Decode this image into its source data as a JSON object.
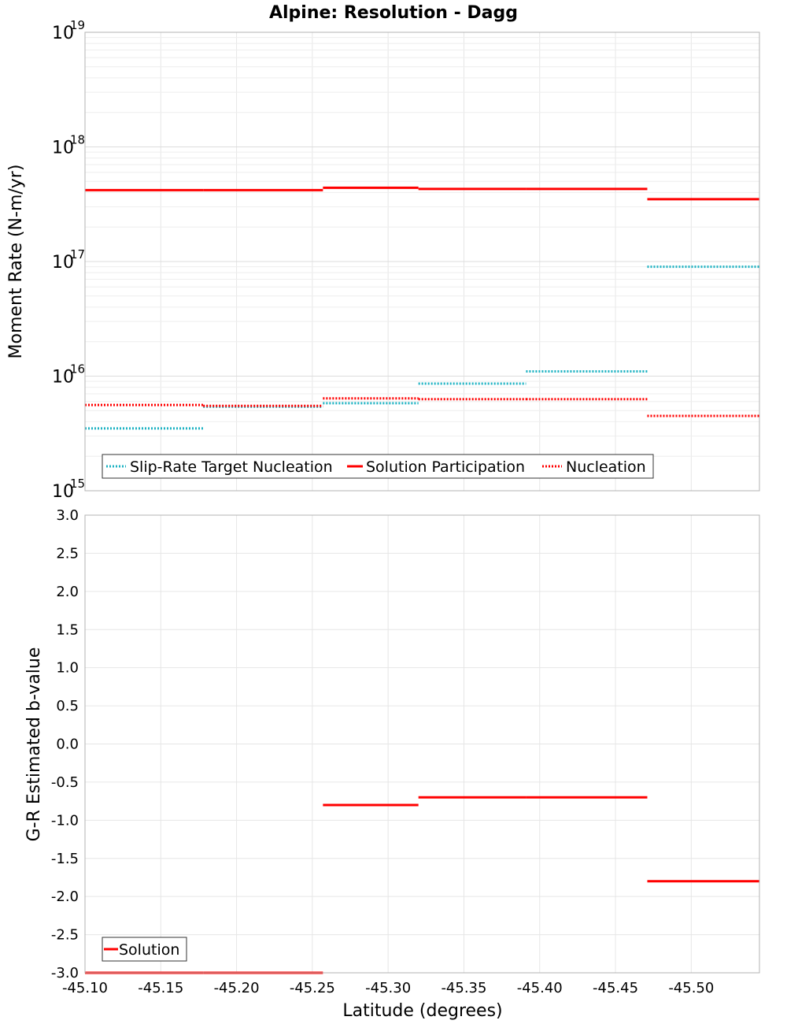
{
  "title": "Alpine: Resolution - Dagg",
  "colors": {
    "teal": "#1fb3c3",
    "red": "#ff0000",
    "grid": "#e6e6e6",
    "frame": "#b3b3b3"
  },
  "chart_data": [
    {
      "type": "line",
      "subtype": "step",
      "ylabel": "Moment Rate (N-m/yr)",
      "yscale": "log",
      "ylim": [
        1000000000000000.0,
        1e+19
      ],
      "xlim": [
        -45.1,
        -45.545
      ],
      "xaxis_inverted": true,
      "y_tick_labels": [
        {
          "base": "10",
          "exp": "15",
          "value": 1000000000000000.0
        },
        {
          "base": "10",
          "exp": "16",
          "value": 1e+16
        },
        {
          "base": "10",
          "exp": "17",
          "value": 1e+17
        },
        {
          "base": "10",
          "exp": "18",
          "value": 1e+18
        },
        {
          "base": "10",
          "exp": "19",
          "value": 1e+19
        }
      ],
      "grid": true,
      "legend_position": "bottom-left",
      "series": [
        {
          "name": "Slip-Rate Target Nucleation",
          "style": "dotted",
          "color": "#1fb3c3",
          "segments": [
            {
              "x0": -45.1,
              "x1": -45.178,
              "y": 3500000000000000.0
            },
            {
              "x0": -45.178,
              "x1": -45.257,
              "y": 5400000000000000.0
            },
            {
              "x0": -45.257,
              "x1": -45.32,
              "y": 5800000000000000.0
            },
            {
              "x0": -45.32,
              "x1": -45.391,
              "y": 8600000000000000.0
            },
            {
              "x0": -45.391,
              "x1": -45.471,
              "y": 1.1e+16
            },
            {
              "x0": -45.471,
              "x1": -45.545,
              "y": 9e+16
            }
          ]
        },
        {
          "name": "Solution Participation",
          "style": "solid",
          "color": "#ff0000",
          "segments": [
            {
              "x0": -45.1,
              "x1": -45.178,
              "y": 4.2e+17
            },
            {
              "x0": -45.178,
              "x1": -45.257,
              "y": 4.2e+17
            },
            {
              "x0": -45.257,
              "x1": -45.32,
              "y": 4.4e+17
            },
            {
              "x0": -45.32,
              "x1": -45.391,
              "y": 4.3e+17
            },
            {
              "x0": -45.391,
              "x1": -45.471,
              "y": 4.3e+17
            },
            {
              "x0": -45.471,
              "x1": -45.545,
              "y": 3.5e+17
            }
          ]
        },
        {
          "name": "Nucleation",
          "style": "dotted",
          "color": "#ff0000",
          "segments": [
            {
              "x0": -45.1,
              "x1": -45.178,
              "y": 5600000000000000.0
            },
            {
              "x0": -45.178,
              "x1": -45.257,
              "y": 5500000000000000.0
            },
            {
              "x0": -45.257,
              "x1": -45.32,
              "y": 6400000000000000.0
            },
            {
              "x0": -45.32,
              "x1": -45.391,
              "y": 6300000000000000.0
            },
            {
              "x0": -45.391,
              "x1": -45.471,
              "y": 6300000000000000.0
            },
            {
              "x0": -45.471,
              "x1": -45.545,
              "y": 4500000000000000.0
            }
          ]
        }
      ]
    },
    {
      "type": "line",
      "subtype": "step",
      "xlabel": "Latitude (degrees)",
      "ylabel": "G-R Estimated b-value",
      "ylim": [
        -3.0,
        3.0
      ],
      "xlim": [
        -45.1,
        -45.545
      ],
      "xaxis_inverted": true,
      "y_tick_labels": [
        "3.0",
        "2.5",
        "2.0",
        "1.5",
        "1.0",
        "0.5",
        "0.0",
        "-0.5",
        "-1.0",
        "-1.5",
        "-2.0",
        "-2.5",
        "-3.0"
      ],
      "x_tick_labels": [
        "-45.10",
        "-45.15",
        "-45.20",
        "-45.25",
        "-45.30",
        "-45.35",
        "-45.40",
        "-45.45",
        "-45.50"
      ],
      "grid": true,
      "legend_position": "bottom-left",
      "series": [
        {
          "name": "Solution",
          "style": "solid",
          "color": "#ff0000",
          "segments": [
            {
              "x0": -45.1,
              "x1": -45.178,
              "y": -3.0
            },
            {
              "x0": -45.178,
              "x1": -45.257,
              "y": -3.0
            },
            {
              "x0": -45.257,
              "x1": -45.32,
              "y": -0.8
            },
            {
              "x0": -45.32,
              "x1": -45.391,
              "y": -0.7
            },
            {
              "x0": -45.391,
              "x1": -45.471,
              "y": -0.7
            },
            {
              "x0": -45.471,
              "x1": -45.545,
              "y": -1.8
            }
          ]
        }
      ]
    }
  ]
}
